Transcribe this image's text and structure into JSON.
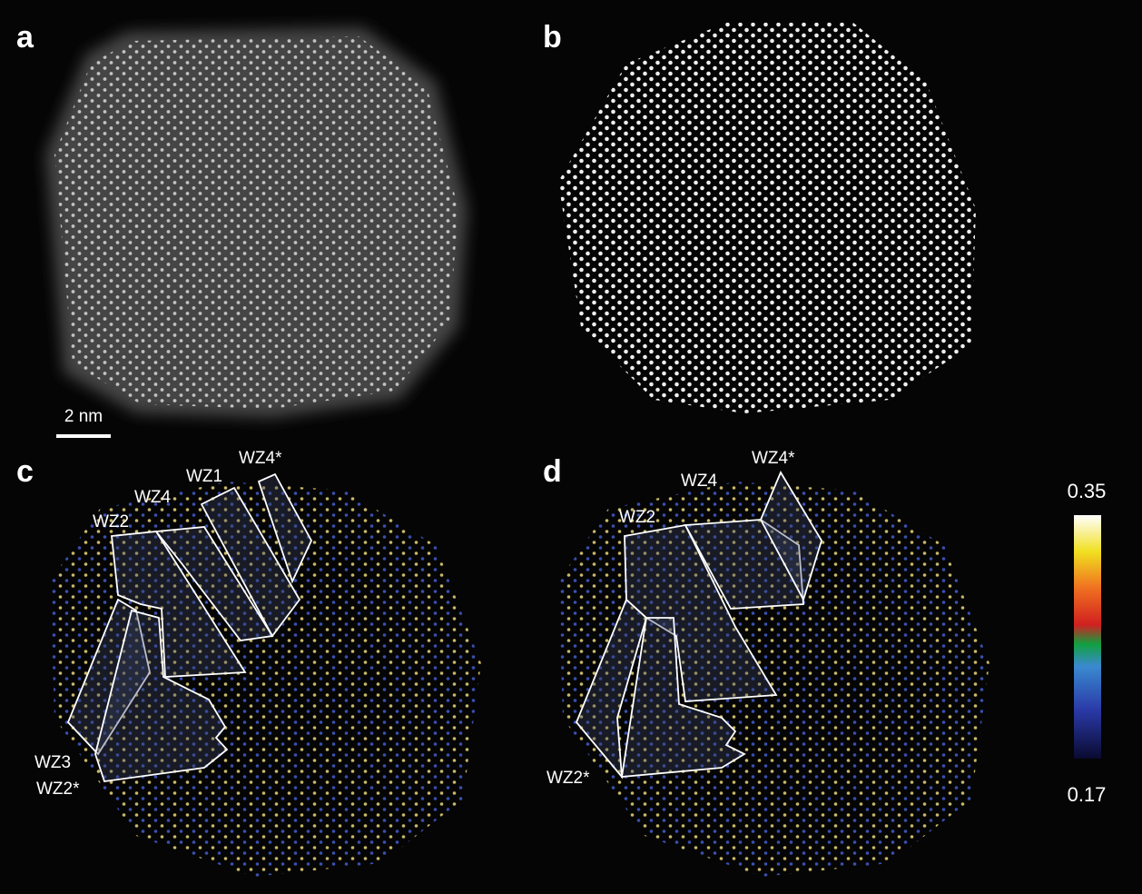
{
  "panels": [
    {
      "label": "a",
      "scale_bar": "2 nm"
    },
    {
      "label": "b"
    },
    {
      "label": "c",
      "annotations": [
        "WZ4*",
        "WZ1",
        "WZ4",
        "WZ2",
        "WZ3",
        "WZ2*"
      ]
    },
    {
      "label": "d",
      "annotations": [
        "WZ4",
        "WZ4*",
        "WZ2",
        "WZ2*"
      ]
    }
  ],
  "colorbar": {
    "max": "0.35",
    "min": "0.17"
  }
}
